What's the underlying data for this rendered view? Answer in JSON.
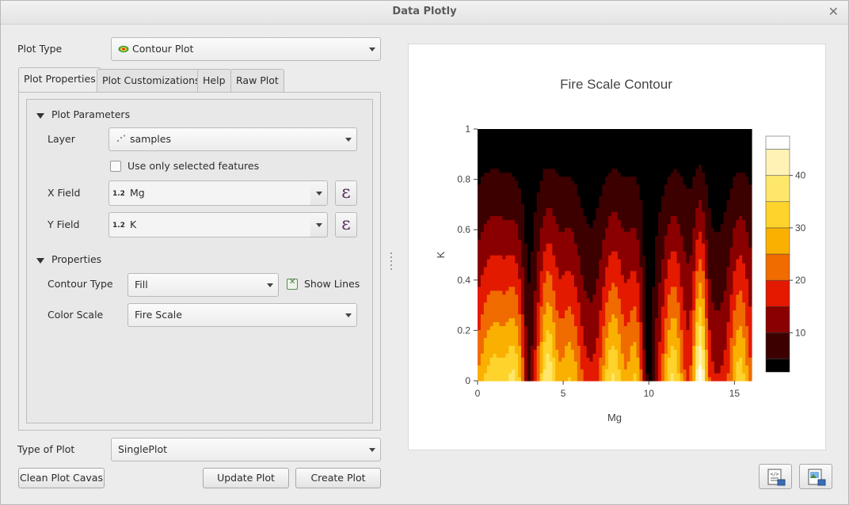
{
  "window": {
    "title": "Data Plotly",
    "close_glyph": "✕"
  },
  "left": {
    "plot_type_label": "Plot Type",
    "plot_type_value": "Contour Plot",
    "tabs": [
      {
        "label": "Plot Properties",
        "active": true
      },
      {
        "label": "Plot Customizations",
        "active": false
      },
      {
        "label": "Help",
        "active": false
      },
      {
        "label": "Raw Plot",
        "active": false
      }
    ],
    "plot_parameters": {
      "title": "Plot Parameters",
      "layer_label": "Layer",
      "layer_value": "samples",
      "selected_features_label": "Use only selected features",
      "selected_features_checked": false,
      "x_field_label": "X Field",
      "x_field_type": "1.2",
      "x_field_value": "Mg",
      "y_field_label": "Y Field",
      "y_field_type": "1.2",
      "y_field_value": "K",
      "expression_glyph": "ε"
    },
    "properties": {
      "title": "Properties",
      "contour_type_label": "Contour Type",
      "contour_type_value": "Fill",
      "show_lines_label": "Show Lines",
      "show_lines_checked": true,
      "color_scale_label": "Color Scale",
      "color_scale_value": "Fire Scale"
    },
    "type_of_plot_label": "Type of Plot",
    "type_of_plot_value": "SinglePlot",
    "buttons": {
      "clean": "Clean Plot Cavas",
      "update": "Update Plot",
      "create": "Create Plot"
    }
  },
  "chart_data": {
    "type": "heatmap",
    "title": "Fire Scale Contour",
    "xlabel": "Mg",
    "ylabel": "K",
    "xlim": [
      0,
      16
    ],
    "ylim": [
      0,
      1
    ],
    "x_ticks": [
      "0",
      "5",
      "10",
      "15"
    ],
    "y_ticks": [
      "0",
      "0.2",
      "0.4",
      "0.6",
      "0.8",
      "1"
    ],
    "colorbar_ticks": [
      "10",
      "20",
      "30",
      "40"
    ],
    "colorbar_range": [
      2.5,
      47.5
    ],
    "colorscale": [
      "#000000",
      "#3d0000",
      "#8a0000",
      "#e31a00",
      "#f06b00",
      "#f9b000",
      "#fdd32c",
      "#fee76a",
      "#fff2b4",
      "#ffffff"
    ],
    "contour_levels": [
      5,
      10,
      15,
      20,
      25,
      30,
      35,
      40,
      45
    ],
    "show_lines": true
  },
  "footer": {
    "export_html_icon": "export-html-icon",
    "export_image_icon": "export-image-icon"
  }
}
